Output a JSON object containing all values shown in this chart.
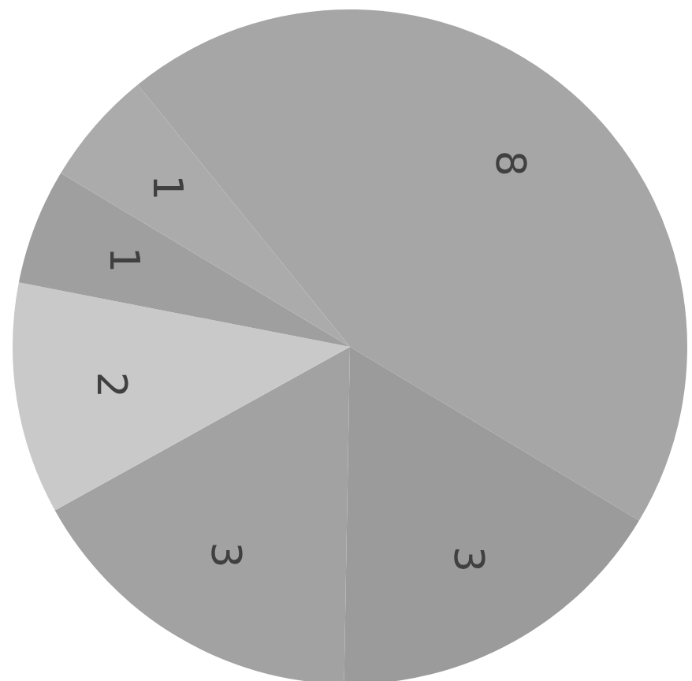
{
  "chart_data": {
    "type": "pie",
    "categories": [
      null,
      null,
      null,
      null,
      null,
      null
    ],
    "values": [
      8,
      3,
      3,
      2,
      1,
      1
    ],
    "colors": [
      "#a6a6a6",
      "#9b9b9b",
      "#a2a2a2",
      "#c9c9c9",
      "#9f9f9f",
      "#ababab"
    ],
    "data_labels": true
  }
}
